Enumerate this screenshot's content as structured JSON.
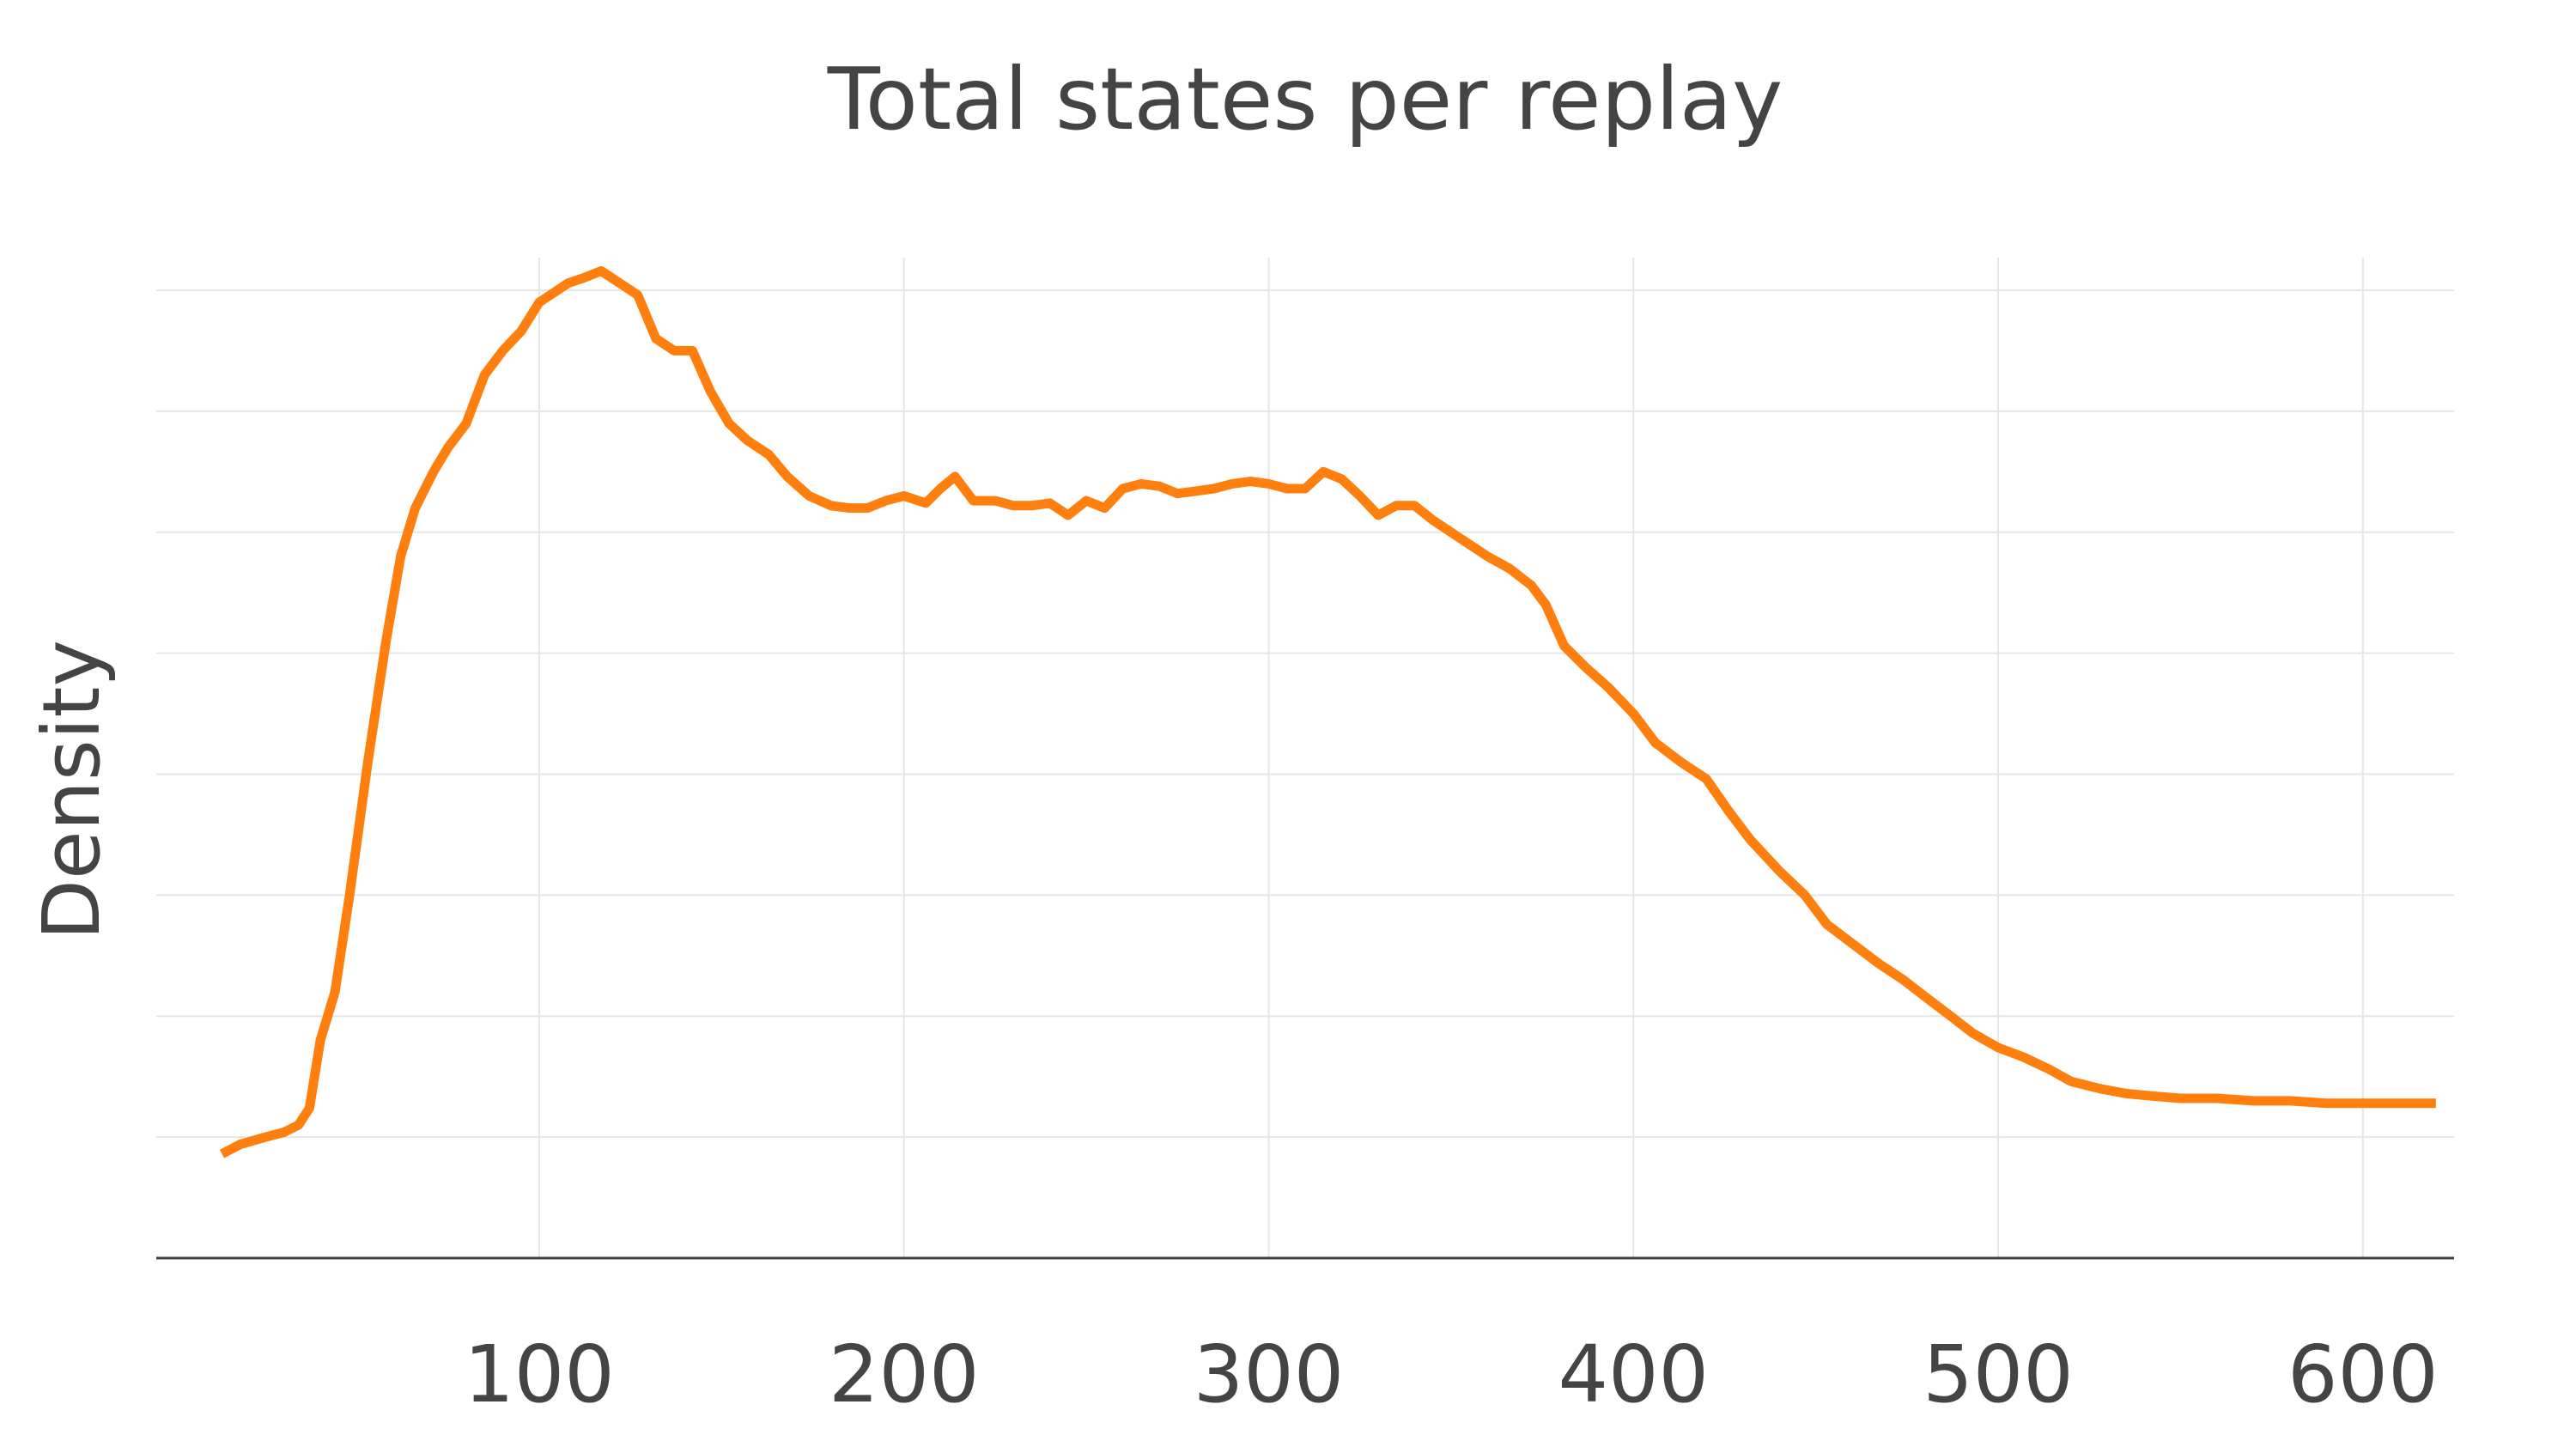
{
  "chart_data": {
    "type": "line",
    "title": "Total states per replay",
    "xlabel": "",
    "ylabel": "Density",
    "xlim": [
      -5,
      625
    ],
    "ylim": [
      0,
      0.004
    ],
    "x_ticks": [
      100,
      200,
      300,
      400,
      500,
      600
    ],
    "x_tick_labels": [
      "100",
      "200",
      "300",
      "400",
      "500",
      "600"
    ],
    "y_grid": [
      0.0005,
      0.001,
      0.0015,
      0.002,
      0.0025,
      0.003,
      0.0035,
      0.004
    ],
    "grid": true,
    "legend": "none",
    "series": [
      {
        "color": "#ff7f0e",
        "points": [
          [
            13,
            0.00043
          ],
          [
            18,
            0.00047
          ],
          [
            25,
            0.0005
          ],
          [
            30,
            0.00052
          ],
          [
            34,
            0.00055
          ],
          [
            37,
            0.00062
          ],
          [
            40,
            0.0009
          ],
          [
            44,
            0.0011
          ],
          [
            48,
            0.0015
          ],
          [
            53,
            0.00205
          ],
          [
            58,
            0.00255
          ],
          [
            62,
            0.0029
          ],
          [
            66,
            0.0031
          ],
          [
            71,
            0.00325
          ],
          [
            75,
            0.00335
          ],
          [
            80,
            0.00345
          ],
          [
            85,
            0.00365
          ],
          [
            90,
            0.00375
          ],
          [
            95,
            0.00383
          ],
          [
            100,
            0.00395
          ],
          [
            104,
            0.00399
          ],
          [
            108,
            0.00403
          ],
          [
            112,
            0.00405
          ],
          [
            117,
            0.00408
          ],
          [
            122,
            0.00403
          ],
          [
            127,
            0.00398
          ],
          [
            132,
            0.0038
          ],
          [
            137,
            0.00375
          ],
          [
            142,
            0.00375
          ],
          [
            147,
            0.00358
          ],
          [
            152,
            0.00345
          ],
          [
            157,
            0.00338
          ],
          [
            163,
            0.00332
          ],
          [
            168,
            0.00323
          ],
          [
            174,
            0.00315
          ],
          [
            180,
            0.00311
          ],
          [
            185,
            0.0031
          ],
          [
            190,
            0.0031
          ],
          [
            195,
            0.00313
          ],
          [
            200,
            0.00315
          ],
          [
            206,
            0.00312
          ],
          [
            210,
            0.00318
          ],
          [
            214,
            0.00323
          ],
          [
            219,
            0.00313
          ],
          [
            225,
            0.00313
          ],
          [
            230,
            0.00311
          ],
          [
            235,
            0.00311
          ],
          [
            240,
            0.00312
          ],
          [
            245,
            0.00307
          ],
          [
            250,
            0.00313
          ],
          [
            255,
            0.0031
          ],
          [
            260,
            0.00318
          ],
          [
            265,
            0.0032
          ],
          [
            270,
            0.00319
          ],
          [
            275,
            0.00316
          ],
          [
            280,
            0.00317
          ],
          [
            285,
            0.00318
          ],
          [
            290,
            0.0032
          ],
          [
            295,
            0.00321
          ],
          [
            300,
            0.0032
          ],
          [
            305,
            0.00318
          ],
          [
            310,
            0.00318
          ],
          [
            315,
            0.00325
          ],
          [
            320,
            0.00322
          ],
          [
            325,
            0.00315
          ],
          [
            330,
            0.00307
          ],
          [
            335,
            0.00311
          ],
          [
            340,
            0.00311
          ],
          [
            345,
            0.00305
          ],
          [
            352,
            0.00298
          ],
          [
            360,
            0.0029
          ],
          [
            366,
            0.00285
          ],
          [
            372,
            0.00278
          ],
          [
            376,
            0.0027
          ],
          [
            381,
            0.00253
          ],
          [
            387,
            0.00244
          ],
          [
            393,
            0.00236
          ],
          [
            400,
            0.00225
          ],
          [
            406,
            0.00213
          ],
          [
            413,
            0.00205
          ],
          [
            420,
            0.00198
          ],
          [
            426,
            0.00185
          ],
          [
            432,
            0.00173
          ],
          [
            440,
            0.0016
          ],
          [
            447,
            0.0015
          ],
          [
            453,
            0.00138
          ],
          [
            460,
            0.0013
          ],
          [
            467,
            0.00122
          ],
          [
            474,
            0.00115
          ],
          [
            480,
            0.00108
          ],
          [
            487,
            0.001
          ],
          [
            493,
            0.00093
          ],
          [
            500,
            0.00087
          ],
          [
            507,
            0.00083
          ],
          [
            514,
            0.00078
          ],
          [
            520,
            0.00073
          ],
          [
            528,
            0.0007
          ],
          [
            535,
            0.00068
          ],
          [
            542,
            0.00067
          ],
          [
            550,
            0.00066
          ],
          [
            560,
            0.00066
          ],
          [
            570,
            0.00065
          ],
          [
            580,
            0.00065
          ],
          [
            590,
            0.00064
          ],
          [
            600,
            0.00064
          ],
          [
            610,
            0.00064
          ],
          [
            620,
            0.00064
          ]
        ]
      }
    ]
  }
}
